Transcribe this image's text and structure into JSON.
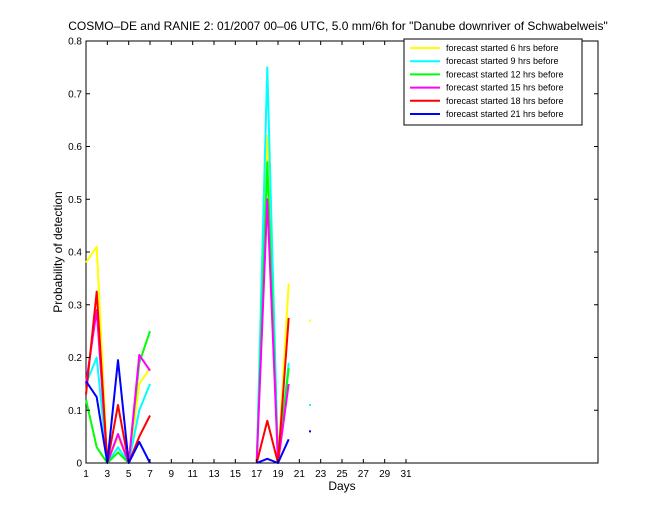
{
  "chart_data": {
    "type": "line",
    "title": "COSMO–DE and RANIE 2: 01/2007 00–06 UTC, 5.0 mm/6h for \"Danube downriver of Schwabelweis\"",
    "xlabel": "Days",
    "ylabel": "Probability of detection",
    "xlim": [
      1,
      49
    ],
    "ylim": [
      0,
      0.8
    ],
    "xticks": [
      1,
      3,
      5,
      7,
      9,
      11,
      13,
      15,
      17,
      19,
      21,
      23,
      25,
      27,
      29,
      31
    ],
    "xtick_labels": [
      "1",
      "3",
      "5",
      "7",
      "9",
      "11",
      "13",
      "15",
      "17",
      "19",
      "21",
      "23",
      "25",
      "27",
      "29",
      "31"
    ],
    "yticks": [
      0,
      0.1,
      0.2,
      0.3,
      0.4,
      0.5,
      0.6,
      0.7,
      0.8
    ],
    "ytick_labels": [
      "0",
      "0.1",
      "0.2",
      "0.3",
      "0.4",
      "0.5",
      "0.6",
      "0.7",
      "0.8"
    ],
    "grid": false,
    "legend_position": "top-right",
    "series": [
      {
        "name": "forecast started 6 hrs before",
        "color": "#ffff00",
        "segments": [
          [
            [
              1,
              0.38
            ],
            [
              2,
              0.41
            ],
            [
              3,
              0.0
            ],
            [
              4,
              0.05
            ],
            [
              5,
              0.0
            ],
            [
              6,
              0.15
            ],
            [
              7,
              0.18
            ]
          ],
          [
            [
              17,
              0.0
            ],
            [
              18,
              0.62
            ],
            [
              19,
              0.0
            ],
            [
              20,
              0.34
            ]
          ],
          [
            [
              22,
              0.27
            ]
          ]
        ]
      },
      {
        "name": "forecast started 9 hrs before",
        "color": "#00ffff",
        "segments": [
          [
            [
              1,
              0.15
            ],
            [
              2,
              0.2
            ],
            [
              3,
              0.0
            ],
            [
              4,
              0.03
            ],
            [
              5,
              0.0
            ],
            [
              6,
              0.1
            ],
            [
              7,
              0.15
            ]
          ],
          [
            [
              17,
              0.0
            ],
            [
              18,
              0.75
            ],
            [
              19,
              0.0
            ],
            [
              20,
              0.19
            ]
          ],
          [
            [
              22,
              0.11
            ]
          ]
        ]
      },
      {
        "name": "forecast started 12 hrs before",
        "color": "#00ff00",
        "segments": [
          [
            [
              1,
              0.12
            ],
            [
              2,
              0.03
            ],
            [
              3,
              0.0
            ],
            [
              4,
              0.02
            ],
            [
              5,
              0.0
            ],
            [
              6,
              0.19
            ],
            [
              7,
              0.25
            ]
          ],
          [
            [
              17,
              0.0
            ],
            [
              18,
              0.57
            ],
            [
              19,
              0.0
            ],
            [
              20,
              0.18
            ]
          ]
        ]
      },
      {
        "name": "forecast started 15 hrs before",
        "color": "#ff00ff",
        "segments": [
          [
            [
              1,
              0.15
            ],
            [
              2,
              0.29
            ],
            [
              3,
              0.0
            ],
            [
              4,
              0.055
            ],
            [
              5,
              0.0
            ],
            [
              6,
              0.205
            ],
            [
              7,
              0.175
            ]
          ],
          [
            [
              17,
              0.0
            ],
            [
              18,
              0.5
            ],
            [
              19,
              0.0
            ],
            [
              20,
              0.15
            ]
          ]
        ]
      },
      {
        "name": "forecast started 18 hrs before",
        "color": "#ff0000",
        "segments": [
          [
            [
              1,
              0.13
            ],
            [
              2,
              0.325
            ],
            [
              3,
              0.0
            ],
            [
              4,
              0.11
            ],
            [
              5,
              0.0
            ],
            [
              6,
              0.05
            ],
            [
              7,
              0.09
            ]
          ],
          [
            [
              17,
              0.0
            ],
            [
              18,
              0.08
            ],
            [
              19,
              0.0
            ],
            [
              20,
              0.275
            ]
          ]
        ]
      },
      {
        "name": "forecast started 21 hrs before",
        "color": "#0000ff",
        "segments": [
          [
            [
              1,
              0.155
            ],
            [
              2,
              0.125
            ],
            [
              3,
              0.0
            ],
            [
              4,
              0.195
            ],
            [
              5,
              0.0
            ],
            [
              6,
              0.04
            ],
            [
              7,
              0.0
            ]
          ],
          [
            [
              17,
              0.0
            ],
            [
              18,
              0.008
            ],
            [
              19,
              0.0
            ],
            [
              20,
              0.045
            ]
          ],
          [
            [
              22,
              0.06
            ]
          ]
        ]
      }
    ]
  }
}
